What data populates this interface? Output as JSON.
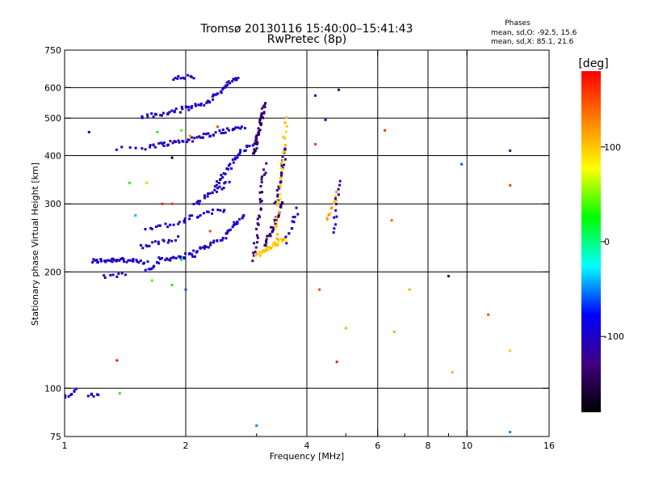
{
  "chart_data": {
    "type": "scatter",
    "title": "Tromsø 20130116 15:40:00–15:41:43",
    "subtitle": "RwPretec (8p)",
    "xlabel": "Frequency [MHz]",
    "ylabel": "Stationary phase Virtual Height [km]",
    "x_scale": "log",
    "y_scale": "log",
    "xlim": [
      1,
      16
    ],
    "ylim": [
      75,
      750
    ],
    "x_ticks": [
      1,
      2,
      4,
      6,
      8,
      10,
      16
    ],
    "x_tick_labels": [
      "1",
      "2",
      "4",
      "6",
      "8",
      "10",
      "16"
    ],
    "x_minor_ticks": [
      3,
      5,
      7,
      9
    ],
    "y_ticks": [
      75,
      100,
      200,
      300,
      400,
      500,
      600,
      750
    ],
    "y_tick_labels": [
      "75",
      "100",
      "200",
      "300",
      "400",
      "500",
      "600",
      "750"
    ],
    "grid": true,
    "grid_x": [
      2,
      4,
      6,
      8,
      10
    ],
    "grid_y": [
      100,
      200,
      300,
      400,
      500,
      600
    ],
    "stats": {
      "heading": "Phases",
      "line_o": "mean, sd,O:  -92.5, 15.6",
      "line_x": "mean, sd,X:   85.1, 21.6"
    },
    "colorbar": {
      "label": "[deg]",
      "range": [
        -180,
        180
      ],
      "ticks": [
        100,
        0,
        -100
      ],
      "tick_labels": [
        "100",
        "0",
        "-100"
      ],
      "colors": [
        "#ff0000",
        "#ff8000",
        "#ffff00",
        "#00ff00",
        "#00ffff",
        "#0000ff",
        "#400080",
        "#000000"
      ]
    },
    "traces": [
      {
        "f": [
          1.17,
          1.4
        ],
        "h": [
          213,
          216
        ],
        "phase": -100,
        "n": 26
      },
      {
        "f": [
          1.4,
          1.6
        ],
        "h": [
          214,
          211
        ],
        "phase": -100,
        "n": 14
      },
      {
        "f": [
          1.25,
          1.42
        ],
        "h": [
          194,
          198
        ],
        "phase": -100,
        "n": 8
      },
      {
        "f": [
          1.6,
          1.72
        ],
        "h": [
          202,
          213
        ],
        "phase": -100,
        "n": 10
      },
      {
        "f": [
          1.72,
          2.1
        ],
        "h": [
          215,
          222
        ],
        "phase": -100,
        "n": 22
      },
      {
        "f": [
          2.1,
          2.5
        ],
        "h": [
          225,
          245
        ],
        "phase": -100,
        "n": 20
      },
      {
        "f": [
          2.5,
          2.8
        ],
        "h": [
          250,
          282
        ],
        "phase": -100,
        "n": 18
      },
      {
        "f": [
          1.55,
          1.9
        ],
        "h": [
          232,
          245
        ],
        "phase": -100,
        "n": 16
      },
      {
        "f": [
          1.6,
          2.0
        ],
        "h": [
          260,
          268
        ],
        "phase": -100,
        "n": 14
      },
      {
        "f": [
          2.0,
          2.5
        ],
        "h": [
          275,
          290
        ],
        "phase": -100,
        "n": 16
      },
      {
        "f": [
          2.1,
          2.55
        ],
        "h": [
          300,
          340
        ],
        "phase": -100,
        "n": 20
      },
      {
        "f": [
          2.35,
          2.7
        ],
        "h": [
          330,
          400
        ],
        "phase": -100,
        "n": 22
      },
      {
        "f": [
          2.7,
          3.0
        ],
        "h": [
          405,
          440
        ],
        "phase": -100,
        "n": 12
      },
      {
        "f": [
          1.35,
          1.6
        ],
        "h": [
          415,
          420
        ],
        "phase": -100,
        "n": 6
      },
      {
        "f": [
          1.62,
          2.2
        ],
        "h": [
          423,
          445
        ],
        "phase": -100,
        "n": 30
      },
      {
        "f": [
          2.2,
          2.8
        ],
        "h": [
          450,
          475
        ],
        "phase": -100,
        "n": 24
      },
      {
        "f": [
          1.55,
          1.8
        ],
        "h": [
          505,
          512
        ],
        "phase": -100,
        "n": 12
      },
      {
        "f": [
          1.8,
          2.3
        ],
        "h": [
          515,
          550
        ],
        "phase": -100,
        "n": 26
      },
      {
        "f": [
          2.3,
          2.7
        ],
        "h": [
          560,
          640
        ],
        "phase": -100,
        "n": 24
      },
      {
        "f": [
          1.85,
          2.1
        ],
        "h": [
          632,
          642
        ],
        "phase": -100,
        "n": 12
      },
      {
        "f": [
          2.95,
          3.15
        ],
        "h": [
          400,
          550
        ],
        "phase": -135,
        "n": 40
      },
      {
        "f": [
          2.95,
          3.15
        ],
        "h": [
          215,
          380
        ],
        "phase": -130,
        "n": 30
      },
      {
        "f": [
          3.15,
          3.5
        ],
        "h": [
          235,
          300
        ],
        "phase": -135,
        "n": 30
      },
      {
        "f": [
          3.35,
          3.55
        ],
        "h": [
          300,
          420
        ],
        "phase": -125,
        "n": 24
      },
      {
        "f": [
          3.0,
          3.55
        ],
        "h": [
          220,
          245
        ],
        "phase": 100,
        "n": 32
      },
      {
        "f": [
          3.35,
          3.55
        ],
        "h": [
          245,
          500
        ],
        "phase": 100,
        "n": 28
      },
      {
        "f": [
          3.55,
          3.8
        ],
        "h": [
          240,
          290
        ],
        "phase": -100,
        "n": 12
      },
      {
        "f": [
          4.5,
          4.75
        ],
        "h": [
          270,
          320
        ],
        "phase": 110,
        "n": 12
      },
      {
        "f": [
          4.65,
          4.8
        ],
        "h": [
          250,
          345
        ],
        "phase": -100,
        "n": 12
      },
      {
        "f": [
          1.0,
          1.07
        ],
        "h": [
          95,
          100
        ],
        "phase": -100,
        "n": 8
      },
      {
        "f": [
          1.15,
          1.22
        ],
        "h": [
          95,
          96
        ],
        "phase": -100,
        "n": 6
      }
    ],
    "points": [
      {
        "f": 6.25,
        "h": 465,
        "phase": 160
      },
      {
        "f": 12.8,
        "h": 412,
        "phase": -130
      },
      {
        "f": 12.8,
        "h": 335,
        "phase": 160
      },
      {
        "f": 9.7,
        "h": 380,
        "phase": -60
      },
      {
        "f": 6.5,
        "h": 272,
        "phase": 140
      },
      {
        "f": 9.0,
        "h": 195,
        "phase": -140
      },
      {
        "f": 11.3,
        "h": 155,
        "phase": 150
      },
      {
        "f": 12.8,
        "h": 125,
        "phase": 100
      },
      {
        "f": 9.2,
        "h": 110,
        "phase": 110
      },
      {
        "f": 6.6,
        "h": 140,
        "phase": 110
      },
      {
        "f": 7.2,
        "h": 180,
        "phase": 110
      },
      {
        "f": 4.3,
        "h": 180,
        "phase": 150
      },
      {
        "f": 4.75,
        "h": 117,
        "phase": 170
      },
      {
        "f": 5.0,
        "h": 143,
        "phase": 110
      },
      {
        "f": 1.35,
        "h": 118,
        "phase": 175
      },
      {
        "f": 3.0,
        "h": 80,
        "phase": -50
      },
      {
        "f": 12.8,
        "h": 77,
        "phase": -50
      },
      {
        "f": 4.2,
        "h": 572,
        "phase": -100
      },
      {
        "f": 4.8,
        "h": 592,
        "phase": -130
      },
      {
        "f": 4.45,
        "h": 495,
        "phase": -100
      },
      {
        "f": 4.2,
        "h": 428,
        "phase": 160
      },
      {
        "f": 1.15,
        "h": 460,
        "phase": -100
      },
      {
        "f": 1.85,
        "h": 395,
        "phase": -170
      },
      {
        "f": 1.45,
        "h": 340,
        "phase": 20
      },
      {
        "f": 1.6,
        "h": 340,
        "phase": 100
      },
      {
        "f": 1.85,
        "h": 300,
        "phase": 160
      },
      {
        "f": 1.75,
        "h": 300,
        "phase": 170
      },
      {
        "f": 1.5,
        "h": 280,
        "phase": -40
      },
      {
        "f": 1.85,
        "h": 185,
        "phase": 30
      },
      {
        "f": 1.65,
        "h": 190,
        "phase": 40
      },
      {
        "f": 2.0,
        "h": 180,
        "phase": -60
      },
      {
        "f": 1.95,
        "h": 465,
        "phase": 40
      },
      {
        "f": 2.05,
        "h": 450,
        "phase": 120
      },
      {
        "f": 1.7,
        "h": 460,
        "phase": 30
      },
      {
        "f": 2.3,
        "h": 255,
        "phase": 150
      },
      {
        "f": 1.95,
        "h": 215,
        "phase": 10
      },
      {
        "f": 2.4,
        "h": 475,
        "phase": 150
      },
      {
        "f": 1.37,
        "h": 97,
        "phase": 30
      }
    ]
  }
}
